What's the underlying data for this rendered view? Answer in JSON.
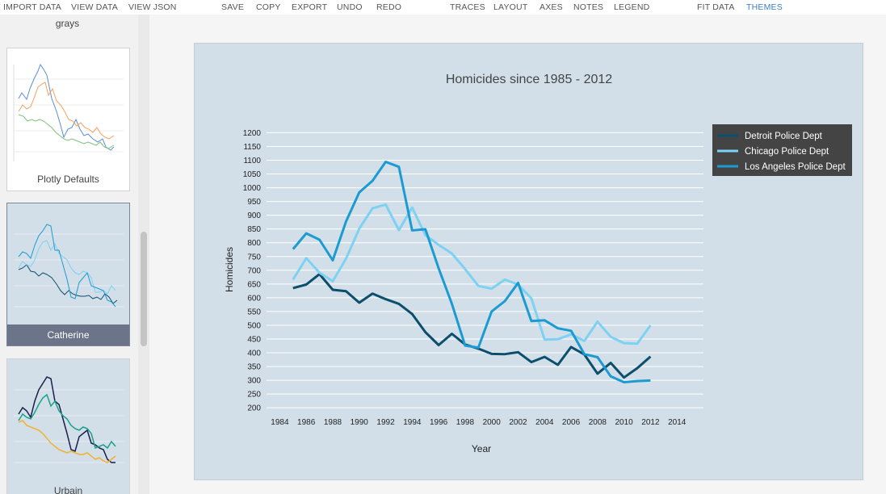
{
  "toolbar": {
    "import_data": "IMPORT DATA",
    "view_data": "VIEW DATA",
    "view_json": "VIEW JSON",
    "save": "SAVE",
    "copy": "COPY",
    "export": "EXPORT",
    "undo": "UNDO",
    "redo": "REDO",
    "traces": "TRACES",
    "layout": "LAYOUT",
    "axes": "AXES",
    "notes": "NOTES",
    "legend": "LEGEND",
    "fit_data": "FIT DATA",
    "themes": "THEMES",
    "active_color": "#3d7cc9"
  },
  "sidebar": {
    "themes": [
      {
        "label": "grays"
      },
      {
        "label": "Plotly Defaults"
      },
      {
        "label": "Catherine",
        "selected": true
      },
      {
        "label": "Urbain"
      }
    ],
    "selected_label_bg": "#6b7489"
  },
  "chart_data": {
    "type": "line",
    "title": "Homicides since 1985 - 2012",
    "xlabel": "Year",
    "ylabel": "Homicides",
    "xlim": [
      1983,
      2016
    ],
    "ylim": [
      180,
      1210
    ],
    "xticks": [
      1984,
      1986,
      1988,
      1990,
      1992,
      1994,
      1996,
      1998,
      2000,
      2002,
      2004,
      2006,
      2008,
      2010,
      2012,
      2014
    ],
    "yticks": [
      200,
      250,
      300,
      350,
      400,
      450,
      500,
      550,
      600,
      650,
      700,
      750,
      800,
      850,
      900,
      950,
      1000,
      1050,
      1100,
      1150,
      1200
    ],
    "grid": true,
    "legend_position": "top-right",
    "background": "#d2dfe8",
    "x": [
      1985,
      1986,
      1987,
      1988,
      1989,
      1990,
      1991,
      1992,
      1993,
      1994,
      1995,
      1996,
      1997,
      1998,
      1999,
      2000,
      2001,
      2002,
      2003,
      2004,
      2005,
      2006,
      2007,
      2008,
      2009,
      2010,
      2011,
      2012
    ],
    "series": [
      {
        "name": "Detroit Police Dept",
        "color": "#0b4f6c",
        "values": [
          635,
          648,
          686,
          629,
          624,
          582,
          615,
          595,
          578,
          541,
          475,
          428,
          469,
          430,
          415,
          396,
          395,
          402,
          366,
          385,
          356,
          421,
          394,
          324,
          363,
          310,
          344,
          386
        ]
      },
      {
        "name": "Chicago Police Dept",
        "color": "#7dd1f2",
        "values": [
          666,
          744,
          691,
          660,
          742,
          851,
          925,
          939,
          846,
          928,
          828,
          792,
          761,
          704,
          643,
          633,
          666,
          648,
          598,
          448,
          449,
          467,
          443,
          513,
          458,
          435,
          433,
          500
        ]
      },
      {
        "name": "Los Angeles Police Dept",
        "color": "#1b9bd1",
        "values": [
          777,
          834,
          811,
          736,
          877,
          983,
          1025,
          1094,
          1076,
          845,
          849,
          707,
          578,
          426,
          419,
          550,
          588,
          654,
          515,
          518,
          489,
          480,
          395,
          384,
          314,
          293,
          297,
          299
        ]
      }
    ]
  }
}
